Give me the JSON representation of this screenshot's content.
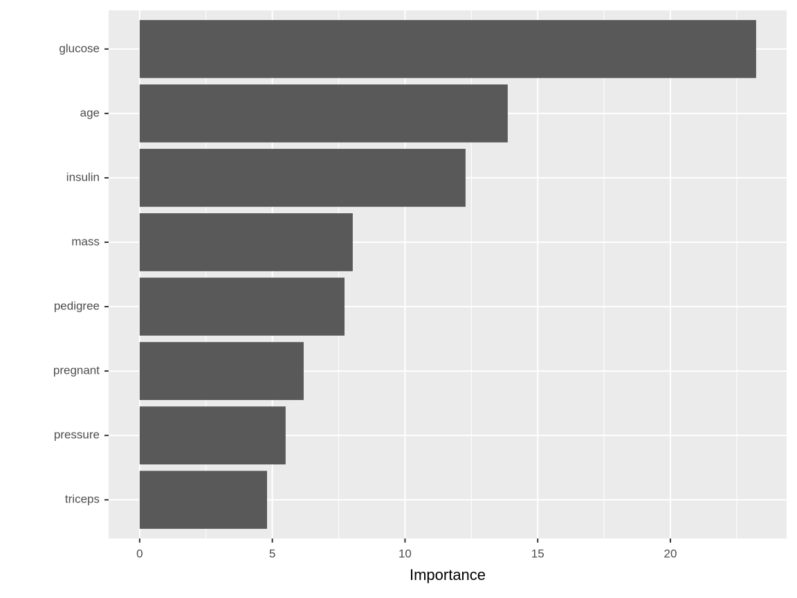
{
  "chart_data": {
    "type": "barh",
    "x_label": "Importance",
    "categories": [
      "glucose",
      "age",
      "insulin",
      "mass",
      "pedigree",
      "pregnant",
      "pressure",
      "triceps"
    ],
    "values": [
      23.23,
      13.87,
      12.28,
      8.03,
      7.72,
      6.18,
      5.5,
      4.8
    ],
    "color": "#595959",
    "xlim": [
      -1.17,
      24.38
    ],
    "xticks": [
      0,
      5,
      10,
      15,
      20
    ],
    "grid": true
  }
}
